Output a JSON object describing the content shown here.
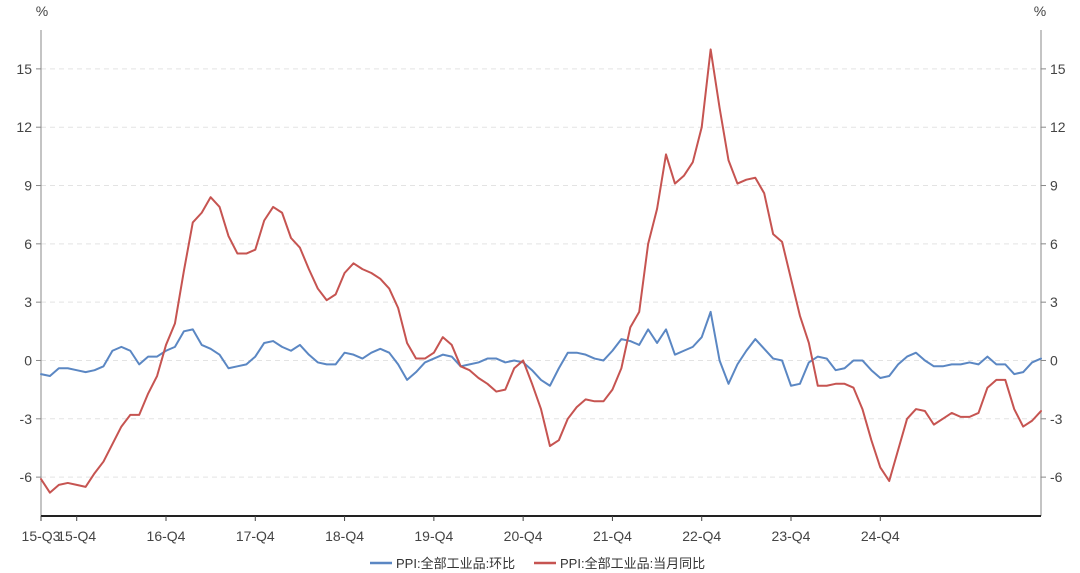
{
  "chart_data": {
    "type": "line",
    "left_unit": "%",
    "right_unit": "%",
    "ylim": [
      -8,
      17
    ],
    "yticks": [
      -6,
      -3,
      0,
      3,
      6,
      9,
      12,
      15
    ],
    "grid": true,
    "legend_position": "bottom-center",
    "x_tick_labels": [
      {
        "index": 0,
        "label": "15-Q3"
      },
      {
        "index": 4,
        "label": "15-Q4"
      },
      {
        "index": 14,
        "label": "16-Q4"
      },
      {
        "index": 24,
        "label": "17-Q4"
      },
      {
        "index": 34,
        "label": "18-Q4"
      },
      {
        "index": 44,
        "label": "19-Q4"
      },
      {
        "index": 54,
        "label": "20-Q4"
      },
      {
        "index": 64,
        "label": "21-Q4"
      },
      {
        "index": 74,
        "label": "22-Q4"
      },
      {
        "index": 84,
        "label": "23-Q4"
      },
      {
        "index": 94,
        "label": "24-Q4"
      }
    ],
    "series": [
      {
        "name": "PPI:全部工业品:环比",
        "color": "#5b87c3",
        "values": [
          -0.7,
          -0.8,
          -0.4,
          -0.4,
          -0.5,
          -0.6,
          -0.5,
          -0.3,
          0.5,
          0.7,
          0.5,
          -0.2,
          0.2,
          0.2,
          0.5,
          0.7,
          1.5,
          1.6,
          0.8,
          0.6,
          0.3,
          -0.4,
          -0.3,
          -0.2,
          0.2,
          0.9,
          1.0,
          0.7,
          0.5,
          0.8,
          0.3,
          -0.1,
          -0.2,
          -0.2,
          0.4,
          0.3,
          0.1,
          0.4,
          0.6,
          0.4,
          -0.2,
          -1.0,
          -0.6,
          -0.1,
          0.1,
          0.3,
          0.2,
          -0.3,
          -0.2,
          -0.1,
          0.1,
          0.1,
          -0.1,
          0.0,
          -0.1,
          -0.5,
          -1.0,
          -1.3,
          -0.4,
          0.4,
          0.4,
          0.3,
          0.1,
          0.0,
          0.5,
          1.1,
          1.0,
          0.8,
          1.6,
          0.9,
          1.6,
          0.3,
          0.5,
          0.7,
          1.2,
          2.5,
          0.0,
          -1.2,
          -0.2,
          0.5,
          1.1,
          0.6,
          0.1,
          0.0,
          -1.3,
          -1.2,
          -0.1,
          0.2,
          0.1,
          -0.5,
          -0.4,
          0.0,
          0.0,
          -0.5,
          -0.9,
          -0.8,
          -0.2,
          0.2,
          0.4,
          0.0,
          -0.3,
          -0.3,
          -0.2,
          -0.2,
          -0.1,
          -0.2,
          0.2,
          -0.2,
          -0.2,
          -0.7,
          -0.6,
          -0.1,
          0.1
        ]
      },
      {
        "name": "PPI:全部工业品:当月同比",
        "color": "#c65451",
        "values": [
          -6.1,
          -6.8,
          -6.4,
          -6.3,
          -6.4,
          -6.5,
          -5.8,
          -5.2,
          -4.3,
          -3.4,
          -2.8,
          -2.8,
          -1.7,
          -0.8,
          0.8,
          1.9,
          4.6,
          7.1,
          7.6,
          8.4,
          7.9,
          6.4,
          5.5,
          5.5,
          5.7,
          7.2,
          7.9,
          7.6,
          6.3,
          5.8,
          4.7,
          3.7,
          3.1,
          3.4,
          4.5,
          5.0,
          4.7,
          4.5,
          4.2,
          3.7,
          2.7,
          0.9,
          0.1,
          0.1,
          0.4,
          1.2,
          0.8,
          -0.3,
          -0.5,
          -0.9,
          -1.2,
          -1.6,
          -1.5,
          -0.4,
          0.0,
          -1.2,
          -2.5,
          -4.4,
          -4.1,
          -3.0,
          -2.4,
          -2.0,
          -2.1,
          -2.1,
          -1.5,
          -0.4,
          1.7,
          2.5,
          6.0,
          7.8,
          10.6,
          9.1,
          9.5,
          10.2,
          12.0,
          16.0,
          13.0,
          10.3,
          9.1,
          9.3,
          9.4,
          8.6,
          6.5,
          6.1,
          4.2,
          2.3,
          0.9,
          -1.3,
          -1.3,
          -1.2,
          -1.2,
          -1.4,
          -2.5,
          -4.1,
          -5.5,
          -6.2,
          -4.6,
          -3.0,
          -2.5,
          -2.6,
          -3.3,
          -3.0,
          -2.7,
          -2.9,
          -2.9,
          -2.7,
          -1.4,
          -1.0,
          -1.0,
          -2.5,
          -3.4,
          -3.1,
          -2.6
        ]
      }
    ]
  }
}
